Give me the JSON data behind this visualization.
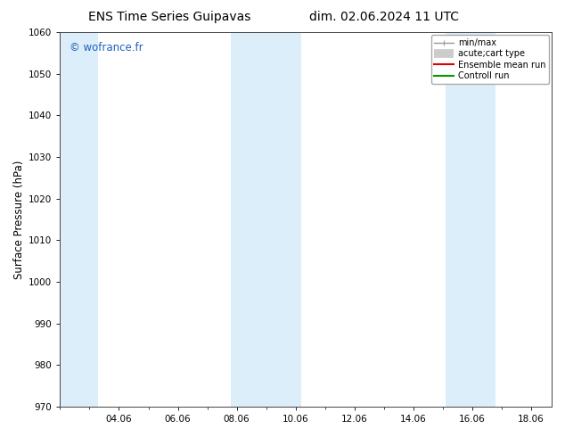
{
  "title_left": "ENS Time Series Guipavas",
  "title_right": "dim. 02.06.2024 11 UTC",
  "ylabel": "Surface Pressure (hPa)",
  "ylim": [
    970,
    1060
  ],
  "yticks": [
    970,
    980,
    990,
    1000,
    1010,
    1020,
    1030,
    1040,
    1050,
    1060
  ],
  "xlim_start": 2.0,
  "xlim_end": 18.7,
  "xtick_labels": [
    "04.06",
    "06.06",
    "08.06",
    "10.06",
    "12.06",
    "14.06",
    "16.06",
    "18.06"
  ],
  "xtick_positions": [
    4,
    6,
    8,
    10,
    12,
    14,
    16,
    18
  ],
  "shaded_bands": [
    {
      "x_start": 2.0,
      "x_end": 3.3,
      "color": "#dceefa"
    },
    {
      "x_start": 7.8,
      "x_end": 10.2,
      "color": "#dceefa"
    },
    {
      "x_start": 15.1,
      "x_end": 16.8,
      "color": "#dceefa"
    }
  ],
  "watermark_text": "© wofrance.fr",
  "watermark_color": "#2060c0",
  "legend_labels": [
    "min/max",
    "acute;cart type",
    "Ensemble mean run",
    "Controll run"
  ],
  "legend_colors": [
    "#999999",
    "#cccccc",
    "#dd0000",
    "#009900"
  ],
  "bg_color": "#ffffff",
  "spine_color": "#444444",
  "title_fontsize": 10,
  "tick_fontsize": 7.5,
  "ylabel_fontsize": 8.5,
  "watermark_fontsize": 8.5,
  "legend_fontsize": 7
}
